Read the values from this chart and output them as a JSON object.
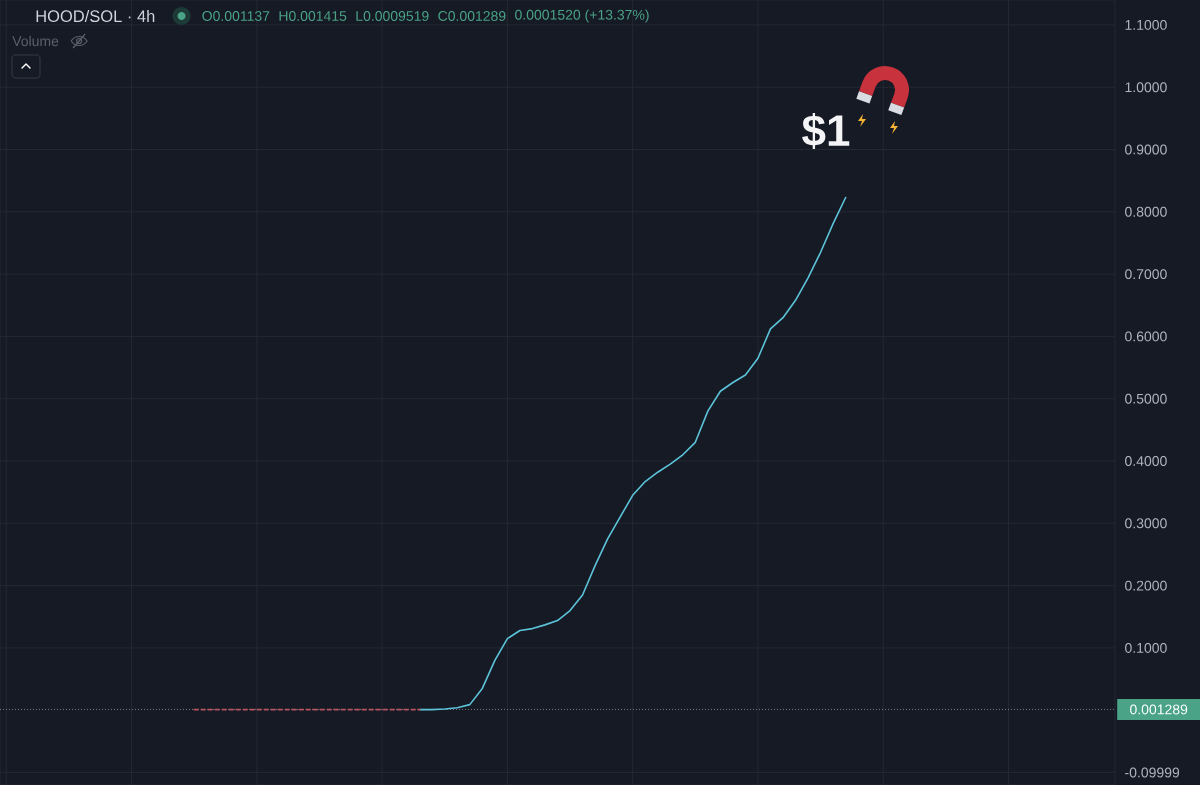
{
  "chart_data": {
    "type": "line",
    "title": "HOOD/SOL · 4h",
    "annotations": [
      "O0.001137",
      "H0.001415",
      "L0.0009519",
      "C0.001289",
      "0.0001520 (+13.37%)",
      "Volume",
      "$1"
    ],
    "categories": [
      null,
      null,
      null,
      null,
      null,
      null,
      null,
      null,
      null,
      null,
      null,
      null,
      null,
      null,
      null,
      null,
      null,
      null,
      null,
      null,
      null,
      null,
      null,
      null,
      null,
      null,
      null,
      null,
      null,
      null,
      null,
      null,
      null,
      null,
      null,
      null,
      null,
      null,
      null,
      null,
      null,
      null,
      null,
      null,
      null,
      null,
      null,
      null,
      null,
      null,
      null,
      null,
      null,
      null,
      null,
      null,
      null,
      null,
      null,
      null,
      null,
      null,
      null,
      null,
      null,
      null,
      null,
      null,
      null,
      null,
      null,
      null,
      null,
      null,
      null,
      null,
      null,
      null,
      null,
      null,
      null,
      null,
      null,
      null,
      null,
      null,
      null,
      null,
      null
    ],
    "series": [
      {
        "color": "#5cc3d9",
        "values": [
          null,
          null,
          null,
          null,
          null,
          null,
          null,
          null,
          null,
          null,
          null,
          null,
          null,
          null,
          null,
          null,
          null,
          null,
          null,
          null,
          null,
          null,
          null,
          null,
          null,
          null,
          null,
          null,
          null,
          null,
          null,
          null,
          null,
          0.001,
          0.001,
          0.002,
          0.004,
          0.009,
          0.035,
          0.08,
          0.115,
          0.128,
          0.131,
          0.137,
          0.144,
          0.16,
          0.185,
          0.232,
          0.275,
          0.31,
          0.345,
          0.367,
          0.382,
          0.395,
          0.41,
          0.43,
          0.48,
          0.512,
          0.526,
          0.538,
          0.565,
          0.612,
          0.63,
          0.658,
          0.694,
          0.735,
          0.781,
          0.823,
          null,
          null,
          null,
          null,
          null,
          null,
          null,
          null,
          null,
          null,
          null,
          null,
          null,
          null,
          null,
          null,
          null,
          null,
          null,
          null,
          null
        ]
      },
      {
        "color": "#b5525f",
        "line_style": "dashed",
        "values": [
          null,
          null,
          null,
          null,
          null,
          null,
          null,
          null,
          null,
          null,
          null,
          null,
          null,
          null,
          null,
          0.001,
          0.001,
          0.001,
          0.001,
          0.001,
          0.001,
          0.001,
          0.001,
          0.001,
          0.001,
          0.001,
          0.001,
          0.001,
          0.001,
          0.001,
          0.001,
          0.001,
          0.001,
          0.001,
          null,
          null,
          null,
          null,
          null,
          null,
          null,
          null,
          null,
          null,
          null,
          null,
          null,
          null,
          null,
          null,
          null,
          null,
          null,
          null,
          null,
          null,
          null,
          null,
          null,
          null,
          null,
          null,
          null,
          null,
          null,
          null,
          null,
          null,
          null,
          null,
          null,
          null,
          null,
          null,
          null,
          null,
          null,
          null,
          null,
          null,
          null,
          null,
          null,
          null,
          null,
          null,
          null,
          null,
          null
        ]
      }
    ],
    "ylim": [
      -0.12,
      1.14
    ],
    "yticks": [
      {
        "value": 1.1,
        "label": "1.1000"
      },
      {
        "value": 1.0,
        "label": "1.0000"
      },
      {
        "value": 0.9,
        "label": "0.9000"
      },
      {
        "value": 0.8,
        "label": "0.8000"
      },
      {
        "value": 0.7,
        "label": "0.7000"
      },
      {
        "value": 0.6,
        "label": "0.6000"
      },
      {
        "value": 0.5,
        "label": "0.5000"
      },
      {
        "value": 0.4,
        "label": "0.4000"
      },
      {
        "value": 0.3,
        "label": "0.3000"
      },
      {
        "value": 0.2,
        "label": "0.2000"
      },
      {
        "value": 0.1,
        "label": "0.1000"
      },
      -0.09999
    ],
    "ref_lines": [
      {
        "axis": "y",
        "value": 0.001289,
        "label": "0.001289",
        "color": "#9598a1",
        "line_style": "dotted"
      }
    ],
    "grid": true
  }
}
